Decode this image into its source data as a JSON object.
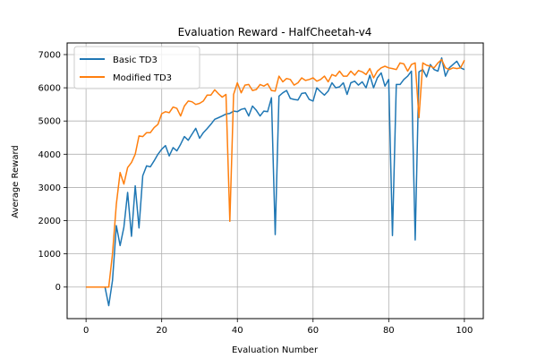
{
  "chart_data": {
    "type": "line",
    "title": "Evaluation Reward - HalfCheetah-v4",
    "xlabel": "Evaluation Number",
    "ylabel": "Average Reward",
    "xlim": [
      -5,
      105
    ],
    "ylim": [
      -950,
      7350
    ],
    "xticks": [
      0,
      20,
      40,
      60,
      80,
      100
    ],
    "yticks": [
      0,
      1000,
      2000,
      3000,
      4000,
      5000,
      6000,
      7000
    ],
    "grid": true,
    "legend_position": "top-left",
    "series": [
      {
        "name": "Basic TD3",
        "color": "#1f77b4",
        "x": [
          0,
          1,
          2,
          3,
          4,
          5,
          6,
          7,
          8,
          9,
          10,
          11,
          12,
          13,
          14,
          15,
          16,
          17,
          18,
          19,
          20,
          21,
          22,
          23,
          24,
          25,
          26,
          27,
          28,
          29,
          30,
          31,
          32,
          33,
          34,
          35,
          36,
          37,
          38,
          39,
          40,
          41,
          42,
          43,
          44,
          45,
          46,
          47,
          48,
          49,
          50,
          51,
          52,
          53,
          54,
          55,
          56,
          57,
          58,
          59,
          60,
          61,
          62,
          63,
          64,
          65,
          66,
          67,
          68,
          69,
          70,
          71,
          72,
          73,
          74,
          75,
          76,
          77,
          78,
          79,
          80,
          81,
          82,
          83,
          84,
          85,
          86,
          87,
          88,
          89,
          90,
          91,
          92,
          93,
          94,
          95,
          96,
          97,
          98,
          99,
          100
        ],
        "values": [
          0,
          0,
          0,
          0,
          0,
          0,
          -560,
          200,
          1850,
          1250,
          1800,
          2850,
          1530,
          3050,
          1780,
          3350,
          3650,
          3620,
          3800,
          4000,
          4150,
          4260,
          3950,
          4200,
          4100,
          4300,
          4530,
          4420,
          4600,
          4780,
          4480,
          4650,
          4770,
          4900,
          5050,
          5100,
          5150,
          5210,
          5230,
          5300,
          5280,
          5350,
          5380,
          5150,
          5450,
          5320,
          5150,
          5300,
          5280,
          5700,
          1580,
          5750,
          5850,
          5920,
          5680,
          5650,
          5630,
          5830,
          5850,
          5650,
          5600,
          6000,
          5880,
          5780,
          5900,
          6150,
          6000,
          6030,
          6150,
          5800,
          6150,
          6200,
          6080,
          6180,
          6000,
          6380,
          6000,
          6300,
          6450,
          6050,
          6250,
          1550,
          6100,
          6100,
          6250,
          6350,
          6500,
          1420,
          6480,
          6550,
          6330,
          6700,
          6550,
          6500,
          6900,
          6350,
          6600,
          6700,
          6800,
          6600,
          6550
        ]
      },
      {
        "name": "Modified TD3",
        "color": "#ff7f0e",
        "x": [
          0,
          1,
          2,
          3,
          4,
          5,
          6,
          7,
          8,
          9,
          10,
          11,
          12,
          13,
          14,
          15,
          16,
          17,
          18,
          19,
          20,
          21,
          22,
          23,
          24,
          25,
          26,
          27,
          28,
          29,
          30,
          31,
          32,
          33,
          34,
          35,
          36,
          37,
          38,
          39,
          40,
          41,
          42,
          43,
          44,
          45,
          46,
          47,
          48,
          49,
          50,
          51,
          52,
          53,
          54,
          55,
          56,
          57,
          58,
          59,
          60,
          61,
          62,
          63,
          64,
          65,
          66,
          67,
          68,
          69,
          70,
          71,
          72,
          73,
          74,
          75,
          76,
          77,
          78,
          79,
          80,
          81,
          82,
          83,
          84,
          85,
          86,
          87,
          88,
          89,
          90,
          91,
          92,
          93,
          94,
          95,
          96,
          97,
          98,
          99,
          100
        ],
        "values": [
          0,
          0,
          0,
          0,
          0,
          0,
          0,
          1000,
          2500,
          3450,
          3100,
          3600,
          3750,
          4000,
          4550,
          4530,
          4650,
          4650,
          4800,
          4900,
          5220,
          5280,
          5250,
          5420,
          5380,
          5150,
          5450,
          5600,
          5580,
          5500,
          5530,
          5600,
          5780,
          5780,
          5940,
          5820,
          5720,
          5800,
          1980,
          5800,
          6150,
          5850,
          6080,
          6100,
          5920,
          5950,
          6100,
          6050,
          6120,
          5920,
          5900,
          6350,
          6180,
          6280,
          6250,
          6080,
          6150,
          6300,
          6220,
          6250,
          6300,
          6200,
          6250,
          6350,
          6180,
          6400,
          6350,
          6500,
          6350,
          6350,
          6500,
          6380,
          6520,
          6480,
          6400,
          6580,
          6300,
          6500,
          6600,
          6650,
          6600,
          6580,
          6550,
          6750,
          6720,
          6500,
          6700,
          6750,
          5100,
          6750,
          6680,
          6650,
          6600,
          6750,
          6850,
          6600,
          6550,
          6600,
          6580,
          6600,
          6830
        ]
      }
    ]
  }
}
